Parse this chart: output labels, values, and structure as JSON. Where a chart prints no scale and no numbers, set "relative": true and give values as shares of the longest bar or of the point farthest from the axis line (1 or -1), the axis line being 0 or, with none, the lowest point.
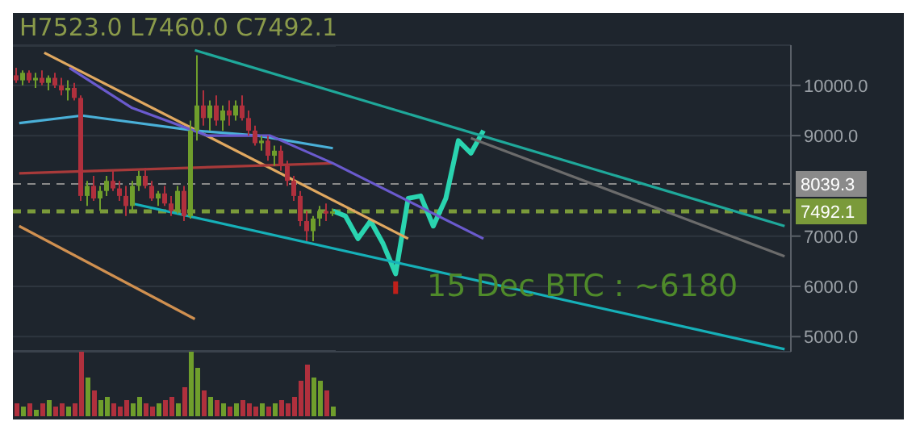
{
  "chart_data": [
    {
      "type": "candlestick",
      "tick_labels": false,
      "ylim": [
        4700,
        10800
      ],
      "categories": [
        null,
        null,
        null,
        null,
        null,
        null,
        null,
        null,
        null,
        null,
        null,
        null,
        null,
        null,
        null,
        null,
        null,
        null,
        null,
        null,
        null,
        null,
        null,
        null,
        null,
        null,
        null,
        null,
        null,
        null,
        null,
        null,
        null,
        null,
        null,
        null,
        null,
        null,
        null,
        null,
        null,
        null,
        null,
        null,
        null,
        null,
        null,
        null,
        null,
        null
      ],
      "ohlc": [
        [
          10200,
          10350,
          10050,
          10100
        ],
        [
          10100,
          10300,
          10000,
          10250
        ],
        [
          10250,
          10300,
          10050,
          10100
        ],
        [
          10100,
          10250,
          9950,
          10150
        ],
        [
          10150,
          10300,
          10000,
          10050
        ],
        [
          10050,
          10200,
          9900,
          10150
        ],
        [
          10150,
          10250,
          9950,
          10000
        ],
        [
          10000,
          10150,
          9800,
          9900
        ],
        [
          9900,
          10100,
          9700,
          9950
        ],
        [
          9950,
          10050,
          9700,
          9750
        ],
        [
          9750,
          9800,
          7700,
          7800
        ],
        [
          7800,
          8100,
          7600,
          8000
        ],
        [
          8000,
          8200,
          7700,
          7750
        ],
        [
          7750,
          8000,
          7500,
          7900
        ],
        [
          7900,
          8200,
          7800,
          8100
        ],
        [
          8100,
          8300,
          7900,
          7950
        ],
        [
          7950,
          8100,
          7700,
          7800
        ],
        [
          7800,
          8000,
          7400,
          7600
        ],
        [
          7600,
          8100,
          7500,
          8000
        ],
        [
          8000,
          8300,
          7900,
          8200
        ],
        [
          8200,
          8350,
          7950,
          8000
        ],
        [
          8000,
          8100,
          7700,
          7750
        ],
        [
          7750,
          7900,
          7600,
          7850
        ],
        [
          7850,
          8000,
          7600,
          7650
        ],
        [
          7650,
          7800,
          7400,
          7500
        ],
        [
          7500,
          8000,
          7450,
          7900
        ],
        [
          7900,
          8000,
          7300,
          7400
        ],
        [
          7400,
          9300,
          7350,
          9100
        ],
        [
          9100,
          10600,
          8900,
          9600
        ],
        [
          9600,
          9900,
          9200,
          9350
        ],
        [
          9350,
          9700,
          9100,
          9600
        ],
        [
          9600,
          9800,
          9200,
          9300
        ],
        [
          9300,
          9600,
          9100,
          9500
        ],
        [
          9500,
          9700,
          9200,
          9400
        ],
        [
          9400,
          9700,
          9300,
          9600
        ],
        [
          9600,
          9800,
          9300,
          9350
        ],
        [
          9350,
          9500,
          9000,
          9100
        ],
        [
          9100,
          9200,
          8800,
          8850
        ],
        [
          8850,
          9000,
          8700,
          8900
        ],
        [
          8900,
          9000,
          8500,
          8600
        ],
        [
          8600,
          8800,
          8400,
          8700
        ],
        [
          8700,
          8800,
          8300,
          8400
        ],
        [
          8400,
          8500,
          8000,
          8100
        ],
        [
          8100,
          8200,
          7700,
          7800
        ],
        [
          7800,
          7900,
          7200,
          7300
        ],
        [
          7300,
          7500,
          6900,
          7100
        ],
        [
          7100,
          7400,
          6900,
          7350
        ],
        [
          7350,
          7600,
          7200,
          7500
        ],
        [
          7500,
          7650,
          7300,
          7450
        ],
        [
          7450,
          7550,
          7400,
          7492.1
        ]
      ],
      "colors": [
        "#b0303d",
        "#6f9e2c",
        "#b0303d",
        "#6f9e2c",
        "#b0303d",
        "#6f9e2c",
        "#b0303d",
        "#b0303d",
        "#6f9e2c",
        "#b0303d",
        "#b0303d",
        "#6f9e2c",
        "#b0303d",
        "#6f9e2c",
        "#6f9e2c",
        "#b0303d",
        "#b0303d",
        "#b0303d",
        "#6f9e2c",
        "#6f9e2c",
        "#b0303d",
        "#b0303d",
        "#6f9e2c",
        "#b0303d",
        "#b0303d",
        "#6f9e2c",
        "#b0303d",
        "#6f9e2c",
        "#6f9e2c",
        "#b0303d",
        "#6f9e2c",
        "#b0303d",
        "#6f9e2c",
        "#b0303d",
        "#6f9e2c",
        "#b0303d",
        "#b0303d",
        "#b0303d",
        "#6f9e2c",
        "#b0303d",
        "#6f9e2c",
        "#b0303d",
        "#b0303d",
        "#b0303d",
        "#b0303d",
        "#b0303d",
        "#6f9e2c",
        "#6f9e2c",
        "#b0303d",
        "#6f9e2c"
      ]
    },
    {
      "type": "line",
      "title": "H7523.0 L7460.0 C7492.1",
      "tick_labels": "y",
      "grid": "y",
      "ylim": [
        4700,
        10800
      ],
      "yticks": [
        {
          "value": 5000,
          "label": "5000.0"
        },
        {
          "value": 6000,
          "label": "6000.0"
        },
        {
          "value": 7000,
          "label": "7000.0"
        },
        {
          "value": 9000,
          "label": "9000.0"
        },
        {
          "value": 10000,
          "label": "10000.0"
        }
      ],
      "categories": [
        null,
        null,
        null,
        null,
        null,
        null,
        null,
        null,
        null,
        null,
        null,
        null,
        null,
        null,
        null,
        null,
        null,
        null,
        null,
        null,
        null,
        null,
        null,
        null,
        null,
        null,
        null,
        null,
        null,
        null,
        null,
        null,
        null,
        null,
        null,
        null,
        null,
        null,
        null,
        null,
        null,
        null,
        null,
        null,
        null,
        null,
        null,
        null,
        null,
        null,
        null,
        null,
        null,
        null,
        null,
        null,
        null,
        null,
        null,
        null,
        null,
        null
      ],
      "series": [
        {
          "color": "#2ad4b0",
          "values": [
            null,
            null,
            null,
            null,
            null,
            null,
            null,
            null,
            null,
            null,
            null,
            null,
            null,
            null,
            null,
            null,
            null,
            null,
            null,
            null,
            null,
            null,
            null,
            null,
            null,
            7500,
            7400,
            6950,
            7300,
            6850,
            6250,
            7750,
            7800,
            7200,
            7750,
            8900,
            8650,
            9100,
            null,
            null,
            null,
            null,
            null,
            null,
            null,
            null,
            null,
            null,
            null,
            null,
            null,
            null,
            null,
            null,
            null,
            null,
            null,
            null,
            null,
            null,
            null,
            null
          ]
        },
        {
          "color": "#1fa89a",
          "values": [
            null,
            null,
            null,
            null,
            null,
            null,
            null,
            null,
            null,
            null,
            null,
            null,
            null,
            null,
            10700,
            null,
            null,
            null,
            null,
            null,
            null,
            null,
            null,
            null,
            null,
            null,
            null,
            null,
            null,
            null,
            null,
            null,
            null,
            null,
            null,
            null,
            null,
            null,
            null,
            null,
            null,
            null,
            null,
            null,
            null,
            null,
            null,
            null,
            null,
            null,
            null,
            null,
            null,
            null,
            null,
            null,
            null,
            null,
            null,
            null,
            null,
            7200
          ]
        },
        {
          "color": "#6b6b6b",
          "values": [
            null,
            null,
            null,
            null,
            null,
            null,
            null,
            null,
            null,
            null,
            null,
            null,
            null,
            null,
            null,
            null,
            null,
            null,
            null,
            null,
            null,
            null,
            null,
            null,
            null,
            null,
            null,
            null,
            null,
            null,
            null,
            null,
            null,
            null,
            null,
            null,
            8950,
            null,
            null,
            null,
            null,
            null,
            null,
            null,
            null,
            null,
            null,
            null,
            null,
            null,
            null,
            null,
            null,
            null,
            null,
            null,
            null,
            null,
            null,
            null,
            null,
            6600
          ]
        },
        {
          "color": "#16b0b8",
          "values": [
            null,
            null,
            null,
            null,
            null,
            null,
            null,
            null,
            null,
            7650,
            null,
            null,
            null,
            null,
            null,
            null,
            null,
            null,
            null,
            null,
            null,
            null,
            null,
            null,
            null,
            null,
            null,
            null,
            null,
            null,
            null,
            null,
            null,
            null,
            null,
            null,
            null,
            null,
            null,
            null,
            null,
            null,
            null,
            null,
            null,
            null,
            null,
            null,
            null,
            null,
            null,
            null,
            null,
            null,
            null,
            null,
            null,
            null,
            null,
            null,
            null,
            4750
          ]
        },
        {
          "color": "#e0a860",
          "values": [
            null,
            null,
            10650,
            null,
            null,
            null,
            null,
            null,
            null,
            null,
            null,
            null,
            null,
            null,
            null,
            null,
            null,
            null,
            null,
            null,
            null,
            null,
            null,
            null,
            null,
            null,
            null,
            null,
            null,
            null,
            null,
            6950,
            null,
            null,
            null,
            null,
            null,
            null,
            null,
            null,
            null,
            null,
            null,
            null,
            null,
            null,
            null,
            null,
            null,
            null,
            null,
            null,
            null,
            null,
            null,
            null,
            null,
            null,
            null,
            null,
            null,
            null
          ]
        },
        {
          "color": "#d09050",
          "values": [
            7200,
            null,
            null,
            null,
            null,
            null,
            null,
            null,
            null,
            null,
            null,
            null,
            null,
            null,
            5350,
            null,
            null,
            null,
            null,
            null,
            null,
            null,
            null,
            null,
            null,
            null,
            null,
            null,
            null,
            null,
            null,
            null,
            null,
            null,
            null,
            null,
            null,
            null,
            null,
            null,
            null,
            null,
            null,
            null,
            null,
            null,
            null,
            null,
            null,
            null,
            null,
            null,
            null,
            null,
            null,
            null,
            null,
            null,
            null,
            null,
            null,
            null
          ]
        },
        {
          "color": "#a83a3a",
          "values": [
            8250,
            null,
            null,
            null,
            null,
            null,
            null,
            null,
            null,
            null,
            null,
            null,
            null,
            null,
            null,
            null,
            null,
            null,
            null,
            null,
            null,
            null,
            null,
            null,
            null,
            8450,
            null,
            null,
            null,
            null,
            null,
            null,
            null,
            null,
            null,
            null,
            null,
            null,
            null,
            null,
            null,
            null,
            null,
            null,
            null,
            null,
            null,
            null,
            null,
            null,
            null,
            null,
            null,
            null,
            null,
            null,
            null,
            null,
            null,
            null,
            null,
            null
          ]
        },
        {
          "color": "#4ab0d8",
          "values": [
            9250,
            null,
            null,
            null,
            null,
            9400,
            null,
            null,
            null,
            null,
            null,
            null,
            null,
            null,
            9100,
            null,
            null,
            null,
            null,
            9000,
            null,
            null,
            null,
            null,
            null,
            8750,
            null,
            null,
            null,
            null,
            null,
            null,
            null,
            null,
            null,
            null,
            null,
            null,
            null,
            null,
            null,
            null,
            null,
            null,
            null,
            null,
            null,
            null,
            null,
            null,
            null,
            null,
            null,
            null,
            null,
            null,
            null,
            null,
            null,
            null,
            null,
            null
          ]
        },
        {
          "color": "#6a5acd",
          "values": [
            null,
            null,
            null,
            null,
            10350,
            null,
            null,
            null,
            null,
            9550,
            null,
            null,
            null,
            null,
            null,
            9000,
            null,
            null,
            null,
            null,
            9000,
            null,
            null,
            null,
            null,
            8450,
            null,
            null,
            null,
            null,
            null,
            null,
            null,
            null,
            null,
            null,
            null,
            6950,
            null,
            null,
            null,
            null,
            null,
            null,
            null,
            null,
            null,
            null,
            null,
            null,
            null,
            null,
            null,
            null,
            null,
            null,
            null,
            null,
            null,
            null,
            null,
            null
          ]
        }
      ],
      "ref_lines": [
        {
          "axis": "y",
          "value": 8039.3,
          "label": "8039.3",
          "color": "#8a8a8a",
          "line_style": "dashed"
        },
        {
          "axis": "y",
          "value": 7492.1,
          "label": "7492.1",
          "color": "#7a9a3a",
          "line_style": "dashed"
        }
      ],
      "annotations": [
        "15 Dec BTC : ~6180"
      ]
    },
    {
      "type": "bar",
      "relative": true,
      "categories": [
        null,
        null,
        null,
        null,
        null,
        null,
        null,
        null,
        null,
        null,
        null,
        null,
        null,
        null,
        null,
        null,
        null,
        null,
        null,
        null,
        null,
        null,
        null,
        null,
        null,
        null,
        null,
        null,
        null,
        null,
        null,
        null,
        null,
        null,
        null,
        null,
        null,
        null,
        null,
        null,
        null,
        null,
        null,
        null,
        null,
        null,
        null,
        null,
        null,
        null
      ],
      "values": [
        0.2,
        0.15,
        0.2,
        0.1,
        0.2,
        0.25,
        0.15,
        0.2,
        0.15,
        0.2,
        1,
        0.6,
        0.4,
        0.25,
        0.3,
        0.2,
        0.15,
        0.25,
        0.2,
        0.3,
        0.2,
        0.15,
        0.2,
        0.25,
        0.3,
        0.2,
        0.45,
        1,
        0.75,
        0.4,
        0.3,
        0.25,
        0.2,
        0.15,
        0.2,
        0.25,
        0.2,
        0.15,
        0.2,
        0.15,
        0.2,
        0.25,
        0.2,
        0.3,
        0.55,
        0.8,
        0.6,
        0.55,
        0.4,
        0.15
      ],
      "colors": [
        "#b0303d",
        "#6f9e2c",
        "#b0303d",
        "#6f9e2c",
        "#b0303d",
        "#6f9e2c",
        "#b0303d",
        "#b0303d",
        "#6f9e2c",
        "#b0303d",
        "#b0303d",
        "#6f9e2c",
        "#b0303d",
        "#6f9e2c",
        "#6f9e2c",
        "#b0303d",
        "#b0303d",
        "#b0303d",
        "#6f9e2c",
        "#6f9e2c",
        "#b0303d",
        "#b0303d",
        "#6f9e2c",
        "#b0303d",
        "#b0303d",
        "#6f9e2c",
        "#b0303d",
        "#6f9e2c",
        "#6f9e2c",
        "#b0303d",
        "#6f9e2c",
        "#b0303d",
        "#6f9e2c",
        "#b0303d",
        "#6f9e2c",
        "#b0303d",
        "#b0303d",
        "#b0303d",
        "#6f9e2c",
        "#b0303d",
        "#6f9e2c",
        "#b0303d",
        "#b0303d",
        "#b0303d",
        "#b0303d",
        "#b0303d",
        "#6f9e2c",
        "#6f9e2c",
        "#b0303d",
        "#6f9e2c"
      ]
    }
  ]
}
